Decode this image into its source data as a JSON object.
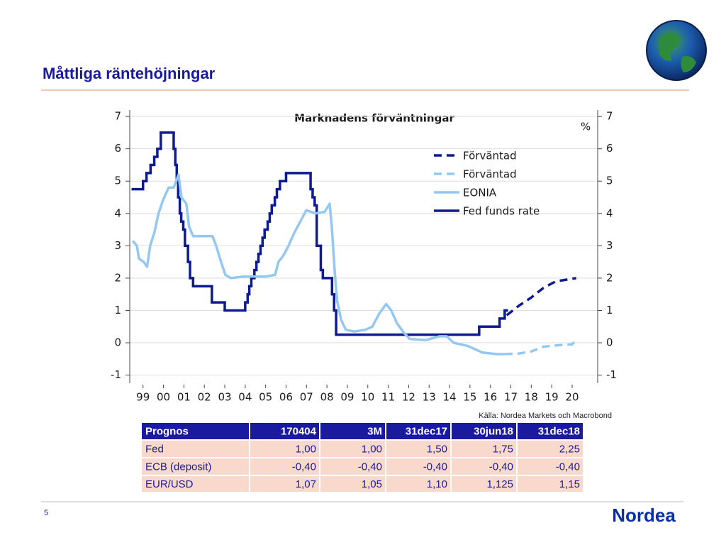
{
  "title": "Måttliga räntehöjningar",
  "chart_data": {
    "type": "line",
    "title": "Marknadens förväntningar",
    "y_unit": "%",
    "xlim": [
      1998.85,
      2021.75
    ],
    "ylim": [
      -1.25,
      7.2
    ],
    "xticks": [
      {
        "value": 1999.5,
        "label": "99"
      },
      {
        "value": 2000.5,
        "label": "00"
      },
      {
        "value": 2001.5,
        "label": "01"
      },
      {
        "value": 2002.5,
        "label": "02"
      },
      {
        "value": 2003.5,
        "label": "03"
      },
      {
        "value": 2004.5,
        "label": "04"
      },
      {
        "value": 2005.5,
        "label": "05"
      },
      {
        "value": 2006.5,
        "label": "06"
      },
      {
        "value": 2007.5,
        "label": "07"
      },
      {
        "value": 2008.5,
        "label": "08"
      },
      {
        "value": 2009.5,
        "label": "09"
      },
      {
        "value": 2010.5,
        "label": "10"
      },
      {
        "value": 2011.5,
        "label": "11"
      },
      {
        "value": 2012.5,
        "label": "12"
      },
      {
        "value": 2013.5,
        "label": "13"
      },
      {
        "value": 2014.5,
        "label": "14"
      },
      {
        "value": 2015.5,
        "label": "15"
      },
      {
        "value": 2016.5,
        "label": "16"
      },
      {
        "value": 2017.5,
        "label": "17"
      },
      {
        "value": 2018.5,
        "label": "18"
      },
      {
        "value": 2019.5,
        "label": "19"
      },
      {
        "value": 2020.5,
        "label": "20"
      }
    ],
    "yticks": [
      -1,
      0,
      1,
      2,
      3,
      4,
      5,
      6,
      7
    ],
    "grid": true,
    "series": [
      {
        "name": "Förväntad",
        "color": "#0d1b8e",
        "dashed": true,
        "x": [
          2017.3,
          2017.9,
          2018.5,
          2019.1,
          2019.7,
          2020.7
        ],
        "values": [
          0.85,
          1.15,
          1.4,
          1.7,
          1.9,
          2.0
        ]
      },
      {
        "name": "Förväntad",
        "color": "#94c8f2",
        "dashed": true,
        "x": [
          2017.2,
          2017.9,
          2018.5,
          2019.1,
          2019.7,
          2020.5,
          2020.7
        ],
        "values": [
          -0.35,
          -0.33,
          -0.27,
          -0.12,
          -0.08,
          -0.05,
          0.1
        ]
      },
      {
        "name": "EONIA",
        "color": "#94c8f2",
        "x": [
          1999.0,
          1999.2,
          1999.3,
          1999.53,
          1999.7,
          1999.85,
          2000.05,
          2000.26,
          2000.47,
          2000.75,
          2001.0,
          2001.24,
          2001.38,
          2001.62,
          2001.75,
          2001.95,
          2002.55,
          2002.9,
          2003.08,
          2003.32,
          2003.53,
          2003.8,
          2004.47,
          2004.98,
          2005.5,
          2005.96,
          2006.13,
          2006.37,
          2006.62,
          2006.9,
          2007.07,
          2007.24,
          2007.49,
          2007.94,
          2008.39,
          2008.63,
          2008.74,
          2008.88,
          2009.0,
          2009.2,
          2009.43,
          2009.85,
          2010.37,
          2010.72,
          2011.06,
          2011.4,
          2011.65,
          2011.93,
          2012.28,
          2012.56,
          2013.32,
          2014.01,
          2014.36,
          2014.7,
          2015.4,
          2016.1,
          2016.8,
          2017.2
        ],
        "values": [
          3.15,
          3.0,
          2.6,
          2.5,
          2.35,
          3.0,
          3.4,
          4.0,
          4.4,
          4.8,
          4.8,
          5.2,
          4.5,
          4.3,
          3.6,
          3.3,
          3.3,
          3.3,
          3.0,
          2.5,
          2.1,
          2.0,
          2.05,
          2.05,
          2.05,
          2.1,
          2.5,
          2.7,
          3.0,
          3.4,
          3.6,
          3.8,
          4.1,
          4.0,
          4.05,
          4.3,
          3.6,
          2.2,
          1.3,
          0.7,
          0.4,
          0.35,
          0.4,
          0.5,
          0.9,
          1.2,
          1.0,
          0.6,
          0.3,
          0.12,
          0.08,
          0.2,
          0.2,
          0.0,
          -0.1,
          -0.3,
          -0.35,
          -0.35
        ]
      },
      {
        "name": "Fed funds rate",
        "color": "#0d1b8e",
        "step": true,
        "x": [
          1999.0,
          1999.5,
          1999.67,
          1999.87,
          2000.05,
          2000.2,
          2000.37,
          2001.0,
          2001.08,
          2001.15,
          2001.22,
          2001.3,
          2001.37,
          2001.47,
          2001.55,
          2001.7,
          2001.8,
          2001.95,
          2002.87,
          2003.5,
          2004.5,
          2004.62,
          2004.7,
          2004.8,
          2004.95,
          2005.05,
          2005.15,
          2005.25,
          2005.35,
          2005.45,
          2005.6,
          2005.7,
          2005.8,
          2005.95,
          2006.05,
          2006.2,
          2006.5,
          2007.7,
          2007.8,
          2007.9,
          2008.0,
          2008.2,
          2008.3,
          2008.75,
          2008.85,
          2008.95,
          2015.95,
          2016.95,
          2017.2,
          2017.3
        ],
        "values": [
          4.75,
          5.0,
          5.25,
          5.5,
          5.75,
          6.0,
          6.5,
          6.0,
          5.5,
          5.0,
          4.5,
          4.0,
          3.75,
          3.5,
          3.0,
          2.5,
          2.0,
          1.75,
          1.25,
          1.0,
          1.25,
          1.5,
          1.75,
          2.0,
          2.25,
          2.5,
          2.75,
          3.0,
          3.25,
          3.5,
          3.75,
          4.0,
          4.25,
          4.5,
          4.75,
          5.0,
          5.25,
          4.75,
          4.5,
          4.25,
          3.0,
          2.25,
          2.0,
          1.5,
          1.0,
          0.25,
          0.5,
          0.75,
          1.0,
          1.0
        ]
      }
    ]
  },
  "source": "Källa: Nordea Markets och Macrobond",
  "table": {
    "header": [
      "Prognos",
      "170404",
      "3M",
      "31dec17",
      "30jun18",
      "31dec18"
    ],
    "rows": [
      [
        "Fed",
        "1,00",
        "1,00",
        "1,50",
        "1,75",
        "2,25"
      ],
      [
        "ECB (deposit)",
        "-0,40",
        "-0,40",
        "-0,40",
        "-0,40",
        "-0,40"
      ],
      [
        "EUR/USD",
        "1,07",
        "1,05",
        "1,10",
        "1,125",
        "1,15"
      ]
    ]
  },
  "page_number": "5",
  "logo": "Nordea"
}
